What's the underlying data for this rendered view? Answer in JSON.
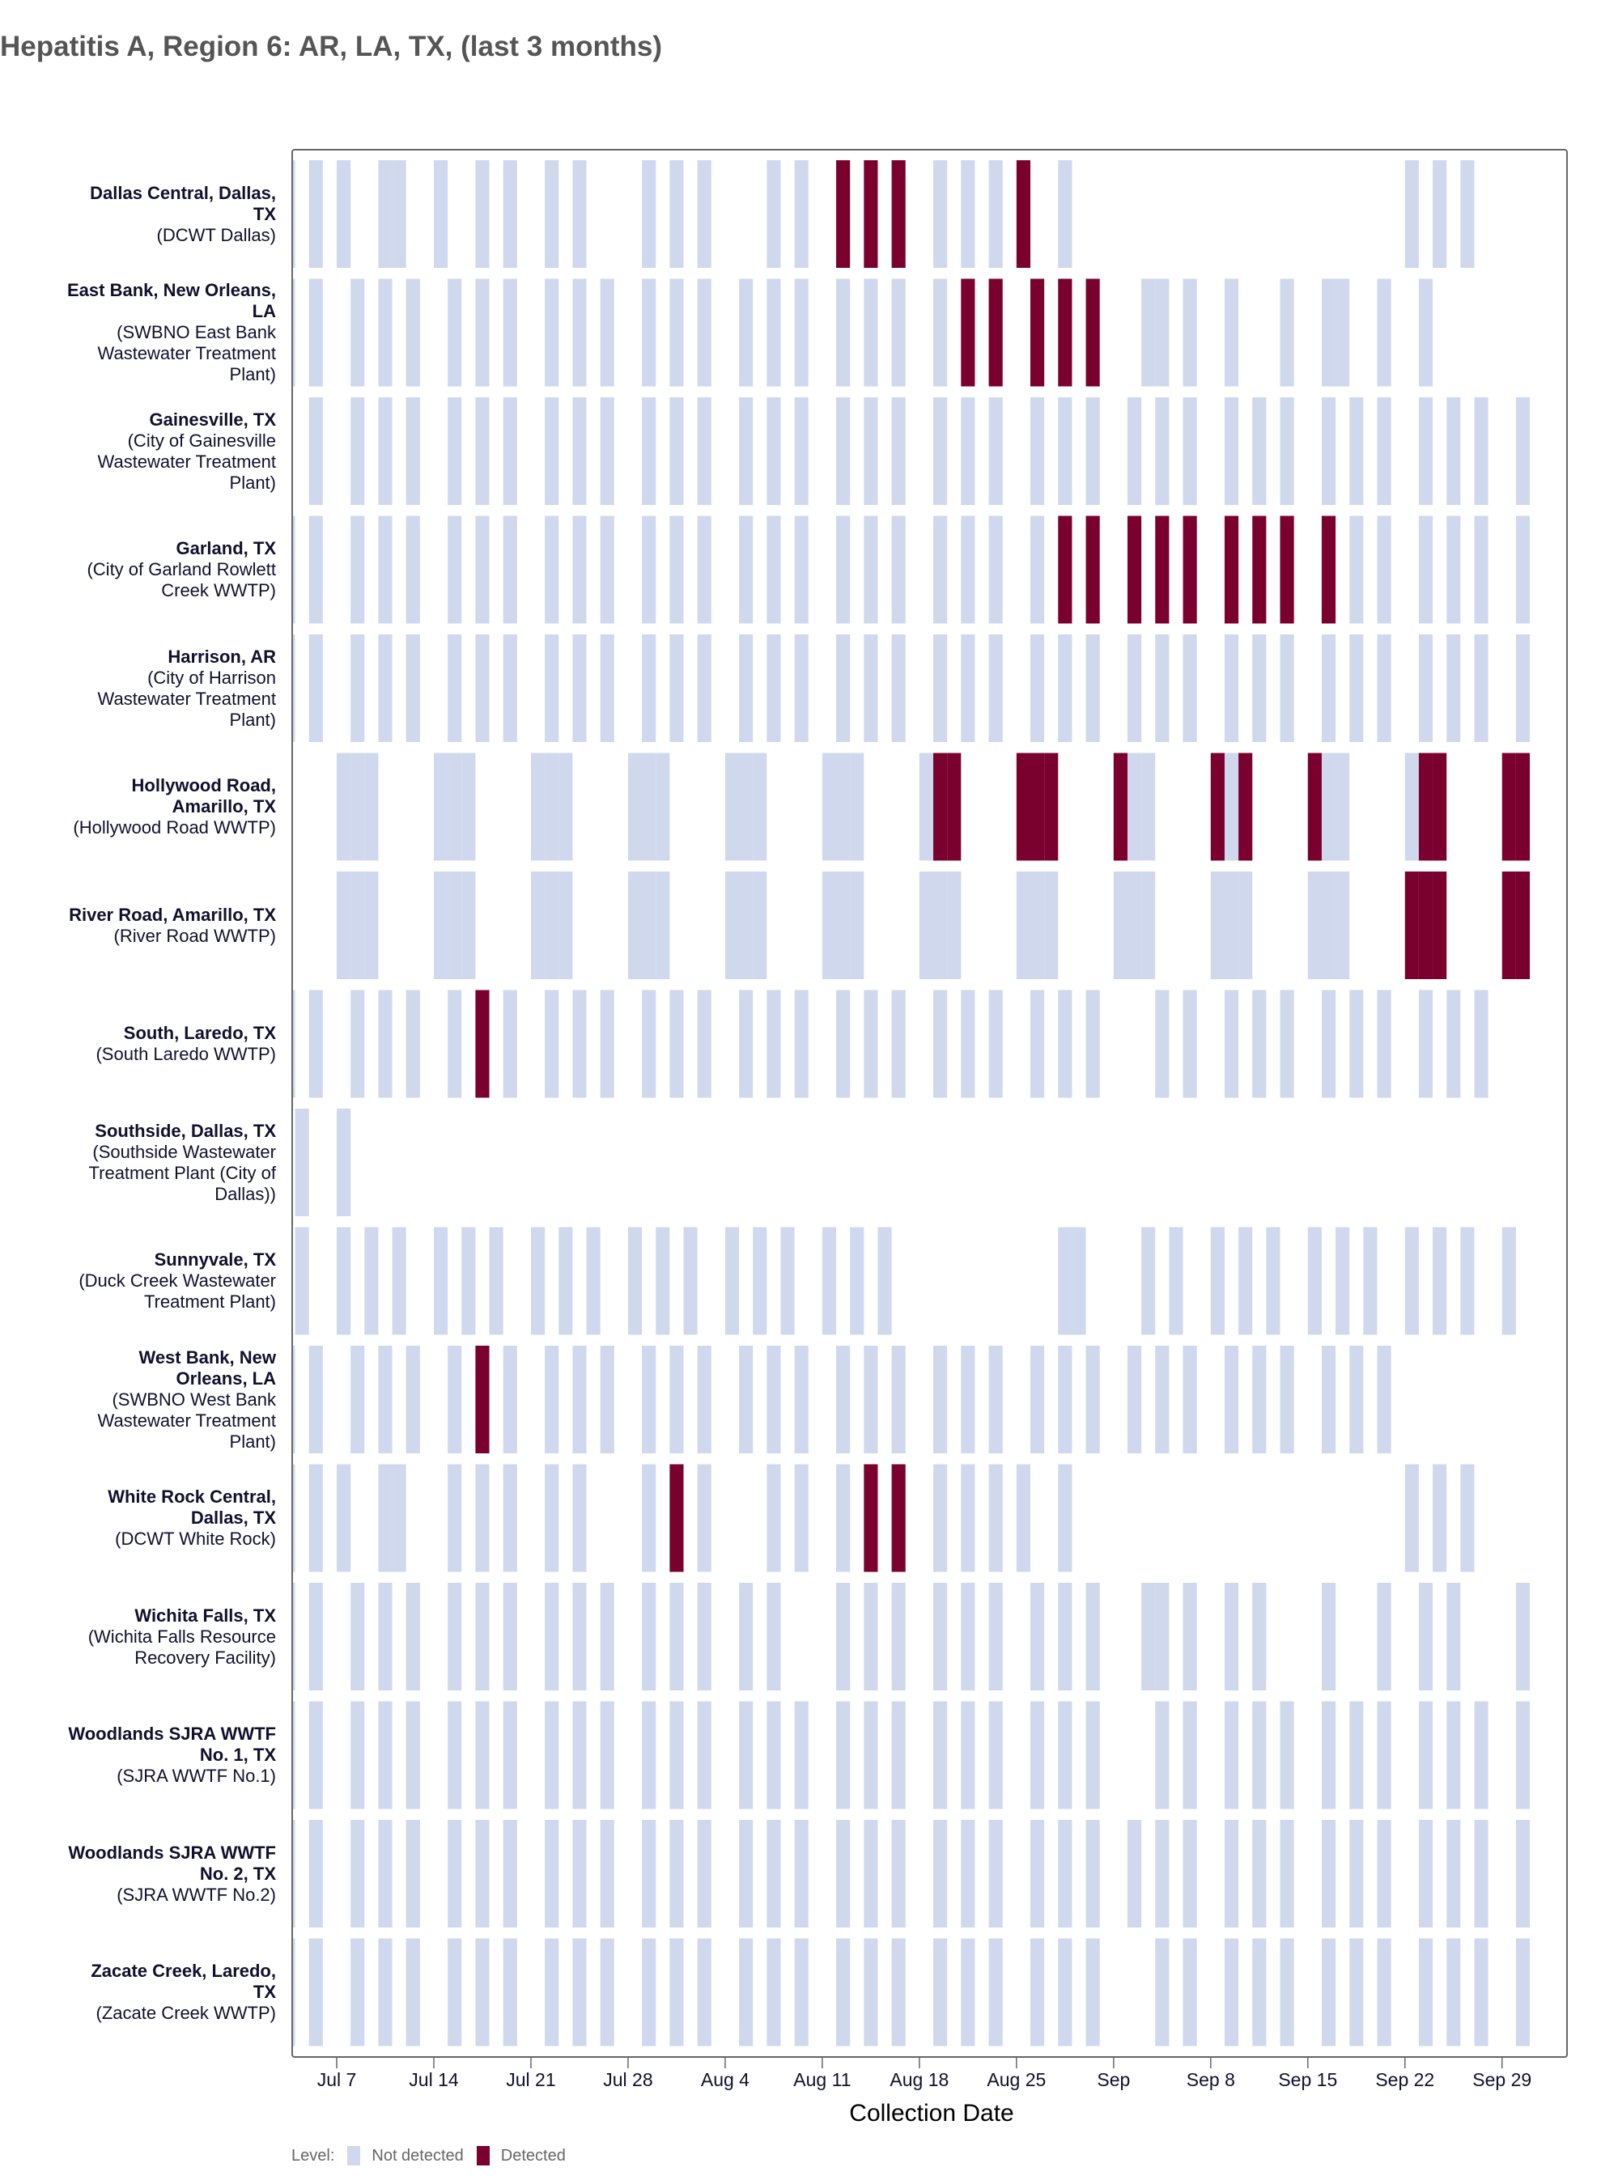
{
  "title": "Hepatitis A, Region 6: AR, LA, TX, (last 3 months)",
  "colors": {
    "not_detected": "#cfd8ed",
    "detected": "#7a002e"
  },
  "chart_data": {
    "type": "heatmap",
    "title": "Hepatitis A, Region 6: AR, LA, TX, (last 3 months)",
    "xlabel": "Collection Date",
    "ylabel": "",
    "x_range": [
      "07-03",
      "10-03"
    ],
    "x_ticks": [
      {
        "date": "07-07",
        "label": "Jul 7"
      },
      {
        "date": "07-14",
        "label": "Jul 14"
      },
      {
        "date": "07-21",
        "label": "Jul 21"
      },
      {
        "date": "07-28",
        "label": "Jul 28"
      },
      {
        "date": "08-04",
        "label": "Aug 4"
      },
      {
        "date": "08-11",
        "label": "Aug 11"
      },
      {
        "date": "08-18",
        "label": "Aug 18"
      },
      {
        "date": "08-25",
        "label": "Aug 25"
      },
      {
        "date": "09-01",
        "label": "Sep"
      },
      {
        "date": "09-08",
        "label": "Sep 8"
      },
      {
        "date": "09-15",
        "label": "Sep 15"
      },
      {
        "date": "09-22",
        "label": "Sep 22"
      },
      {
        "date": "09-29",
        "label": "Sep 29"
      }
    ],
    "legend": {
      "title": "Level:",
      "items": [
        "Not detected",
        "Detected"
      ],
      "placement": "bottom-left"
    },
    "rows": [
      {
        "name_lines": [
          "Dallas Central, Dallas,",
          "TX"
        ],
        "plant_lines": [
          "(DCWT Dallas)"
        ],
        "not_detected": [
          "07-03",
          "07-05",
          "07-07",
          "07-10",
          "07-11",
          "07-14",
          "07-17",
          "07-19",
          "07-22",
          "07-24",
          "07-29",
          "07-31",
          "08-02",
          "08-07",
          "08-09",
          "08-19",
          "08-21",
          "08-23",
          "08-28",
          "09-22",
          "09-24",
          "09-26"
        ],
        "detected": [
          "08-12",
          "08-14",
          "08-16",
          "08-25"
        ]
      },
      {
        "name_lines": [
          "East Bank, New Orleans,",
          "LA"
        ],
        "plant_lines": [
          "(SWBNO East Bank",
          "Wastewater Treatment",
          "Plant)"
        ],
        "not_detected": [
          "07-03",
          "07-05",
          "07-08",
          "07-10",
          "07-12",
          "07-15",
          "07-17",
          "07-19",
          "07-22",
          "07-24",
          "07-26",
          "07-29",
          "07-31",
          "08-02",
          "08-05",
          "08-07",
          "08-09",
          "08-12",
          "08-14",
          "08-16",
          "08-19",
          "09-03",
          "09-04",
          "09-06",
          "09-09",
          "09-13",
          "09-16",
          "09-17",
          "09-20",
          "09-23"
        ],
        "detected": [
          "08-21",
          "08-23",
          "08-26",
          "08-28",
          "08-30"
        ]
      },
      {
        "name_lines": [
          "Gainesville, TX"
        ],
        "plant_lines": [
          "(City of Gainesville",
          "Wastewater Treatment",
          "Plant)"
        ],
        "not_detected": [
          "07-05",
          "07-08",
          "07-10",
          "07-12",
          "07-15",
          "07-17",
          "07-19",
          "07-22",
          "07-24",
          "07-26",
          "07-29",
          "07-31",
          "08-02",
          "08-05",
          "08-07",
          "08-09",
          "08-12",
          "08-14",
          "08-16",
          "08-19",
          "08-21",
          "08-23",
          "08-26",
          "08-28",
          "08-30",
          "09-02",
          "09-04",
          "09-06",
          "09-09",
          "09-11",
          "09-13",
          "09-16",
          "09-18",
          "09-20",
          "09-23",
          "09-25",
          "09-27",
          "09-30"
        ],
        "detected": []
      },
      {
        "name_lines": [
          "Garland, TX"
        ],
        "plant_lines": [
          "(City of Garland Rowlett",
          "Creek WWTP)"
        ],
        "not_detected": [
          "07-03",
          "07-05",
          "07-08",
          "07-10",
          "07-12",
          "07-15",
          "07-17",
          "07-19",
          "07-22",
          "07-24",
          "07-26",
          "07-29",
          "07-31",
          "08-02",
          "08-05",
          "08-07",
          "08-09",
          "08-12",
          "08-14",
          "08-16",
          "08-19",
          "08-21",
          "08-23",
          "08-26",
          "09-18",
          "09-20",
          "09-23",
          "09-25",
          "09-27",
          "09-30"
        ],
        "detected": [
          "08-28",
          "08-30",
          "09-02",
          "09-04",
          "09-06",
          "09-09",
          "09-11",
          "09-13",
          "09-16"
        ]
      },
      {
        "name_lines": [
          "Harrison, AR"
        ],
        "plant_lines": [
          "(City of Harrison",
          "Wastewater Treatment",
          "Plant)"
        ],
        "not_detected": [
          "07-03",
          "07-05",
          "07-08",
          "07-10",
          "07-12",
          "07-15",
          "07-17",
          "07-19",
          "07-22",
          "07-24",
          "07-26",
          "07-29",
          "07-31",
          "08-02",
          "08-05",
          "08-07",
          "08-09",
          "08-12",
          "08-14",
          "08-16",
          "08-19",
          "08-21",
          "08-23",
          "08-26",
          "08-28",
          "08-30",
          "09-02",
          "09-04",
          "09-06",
          "09-09",
          "09-11",
          "09-13",
          "09-16",
          "09-18",
          "09-20",
          "09-23",
          "09-25",
          "09-27",
          "09-30"
        ],
        "detected": []
      },
      {
        "name_lines": [
          "Hollywood Road,",
          "Amarillo, TX"
        ],
        "plant_lines": [
          "(Hollywood Road WWTP)"
        ],
        "not_detected": [
          "07-07",
          "07-08",
          "07-09",
          "07-14",
          "07-15",
          "07-16",
          "07-21",
          "07-22",
          "07-23",
          "07-28",
          "07-29",
          "07-30",
          "08-04",
          "08-05",
          "08-06",
          "08-11",
          "08-12",
          "08-13",
          "08-18",
          "09-02",
          "09-03",
          "09-09",
          "09-16",
          "09-17",
          "09-22"
        ],
        "detected": [
          "08-19",
          "08-20",
          "08-25",
          "08-26",
          "08-27",
          "09-01",
          "09-08",
          "09-10",
          "09-15",
          "09-23",
          "09-24",
          "09-29",
          "09-30"
        ]
      },
      {
        "name_lines": [
          "River Road, Amarillo, TX"
        ],
        "plant_lines": [
          "(River Road WWTP)"
        ],
        "not_detected": [
          "07-07",
          "07-08",
          "07-09",
          "07-14",
          "07-15",
          "07-16",
          "07-21",
          "07-22",
          "07-23",
          "07-28",
          "07-29",
          "07-30",
          "08-04",
          "08-05",
          "08-06",
          "08-11",
          "08-12",
          "08-13",
          "08-18",
          "08-19",
          "08-20",
          "08-25",
          "08-26",
          "08-27",
          "09-01",
          "09-02",
          "09-03",
          "09-08",
          "09-09",
          "09-10",
          "09-15",
          "09-16",
          "09-17"
        ],
        "detected": [
          "09-22",
          "09-23",
          "09-24",
          "09-29",
          "09-30"
        ]
      },
      {
        "name_lines": [
          "South, Laredo, TX"
        ],
        "plant_lines": [
          "(South Laredo WWTP)"
        ],
        "not_detected": [
          "07-03",
          "07-05",
          "07-08",
          "07-10",
          "07-12",
          "07-15",
          "07-19",
          "07-22",
          "07-24",
          "07-26",
          "07-29",
          "07-31",
          "08-02",
          "08-05",
          "08-07",
          "08-09",
          "08-12",
          "08-14",
          "08-16",
          "08-19",
          "08-21",
          "08-23",
          "08-26",
          "08-28",
          "08-30",
          "09-04",
          "09-06",
          "09-09",
          "09-11",
          "09-13",
          "09-16",
          "09-18",
          "09-20",
          "09-23",
          "09-25",
          "09-27"
        ],
        "detected": [
          "07-17"
        ]
      },
      {
        "name_lines": [
          "Southside, Dallas, TX"
        ],
        "plant_lines": [
          "(Southside Wastewater",
          "Treatment Plant (City of",
          "Dallas))"
        ],
        "not_detected": [
          "07-04",
          "07-07"
        ],
        "detected": []
      },
      {
        "name_lines": [
          "Sunnyvale, TX"
        ],
        "plant_lines": [
          "(Duck Creek Wastewater",
          "Treatment Plant)"
        ],
        "not_detected": [
          "07-04",
          "07-07",
          "07-09",
          "07-11",
          "07-14",
          "07-16",
          "07-18",
          "07-21",
          "07-23",
          "07-25",
          "07-28",
          "07-30",
          "08-01",
          "08-04",
          "08-06",
          "08-08",
          "08-11",
          "08-13",
          "08-15",
          "08-28",
          "08-29",
          "09-03",
          "09-05",
          "09-08",
          "09-10",
          "09-12",
          "09-15",
          "09-17",
          "09-19",
          "09-22",
          "09-24",
          "09-26",
          "09-29"
        ],
        "detected": []
      },
      {
        "name_lines": [
          "West Bank, New",
          "Orleans, LA"
        ],
        "plant_lines": [
          "(SWBNO West Bank",
          "Wastewater Treatment",
          "Plant)"
        ],
        "not_detected": [
          "07-03",
          "07-05",
          "07-08",
          "07-10",
          "07-12",
          "07-15",
          "07-19",
          "07-22",
          "07-24",
          "07-26",
          "07-29",
          "07-31",
          "08-02",
          "08-05",
          "08-07",
          "08-09",
          "08-12",
          "08-14",
          "08-16",
          "08-19",
          "08-21",
          "08-23",
          "08-26",
          "08-28",
          "08-30",
          "09-02",
          "09-04",
          "09-06",
          "09-09",
          "09-11",
          "09-13",
          "09-16",
          "09-18",
          "09-20"
        ],
        "detected": [
          "07-17"
        ]
      },
      {
        "name_lines": [
          "White Rock Central,",
          "Dallas, TX"
        ],
        "plant_lines": [
          "(DCWT White Rock)"
        ],
        "not_detected": [
          "07-03",
          "07-05",
          "07-07",
          "07-10",
          "07-11",
          "07-15",
          "07-17",
          "07-19",
          "07-22",
          "07-24",
          "07-29",
          "08-02",
          "08-07",
          "08-09",
          "08-12",
          "08-19",
          "08-21",
          "08-23",
          "08-25",
          "08-28",
          "09-22",
          "09-24",
          "09-26"
        ],
        "detected": [
          "07-31",
          "08-14",
          "08-16"
        ]
      },
      {
        "name_lines": [
          "Wichita Falls, TX"
        ],
        "plant_lines": [
          "(Wichita Falls Resource",
          "Recovery Facility)"
        ],
        "not_detected": [
          "07-03",
          "07-05",
          "07-08",
          "07-10",
          "07-12",
          "07-15",
          "07-17",
          "07-19",
          "07-22",
          "07-24",
          "07-26",
          "07-29",
          "07-31",
          "08-02",
          "08-05",
          "08-07",
          "08-12",
          "08-14",
          "08-16",
          "08-19",
          "08-21",
          "08-23",
          "08-26",
          "08-28",
          "08-30",
          "09-03",
          "09-04",
          "09-06",
          "09-09",
          "09-11",
          "09-16",
          "09-20",
          "09-23",
          "09-25",
          "09-30"
        ],
        "detected": []
      },
      {
        "name_lines": [
          "Woodlands SJRA WWTF",
          "No. 1, TX"
        ],
        "plant_lines": [
          "(SJRA WWTF No.1)"
        ],
        "not_detected": [
          "07-03",
          "07-05",
          "07-08",
          "07-10",
          "07-12",
          "07-15",
          "07-17",
          "07-19",
          "07-22",
          "07-24",
          "07-26",
          "07-29",
          "07-31",
          "08-02",
          "08-05",
          "08-07",
          "08-09",
          "08-12",
          "08-14",
          "08-16",
          "08-19",
          "08-21",
          "08-23",
          "08-26",
          "08-28",
          "08-30",
          "09-04",
          "09-06",
          "09-09",
          "09-11",
          "09-13",
          "09-16",
          "09-18",
          "09-20",
          "09-23",
          "09-25",
          "09-27",
          "09-30"
        ],
        "detected": []
      },
      {
        "name_lines": [
          "Woodlands SJRA WWTF",
          "No. 2, TX"
        ],
        "plant_lines": [
          "(SJRA WWTF No.2)"
        ],
        "not_detected": [
          "07-03",
          "07-05",
          "07-08",
          "07-10",
          "07-12",
          "07-15",
          "07-17",
          "07-19",
          "07-22",
          "07-24",
          "07-26",
          "07-29",
          "07-31",
          "08-02",
          "08-05",
          "08-07",
          "08-09",
          "08-12",
          "08-14",
          "08-16",
          "08-19",
          "08-21",
          "08-23",
          "08-26",
          "08-28",
          "08-30",
          "09-02",
          "09-04",
          "09-06",
          "09-09",
          "09-11",
          "09-13",
          "09-16",
          "09-18",
          "09-20",
          "09-23",
          "09-25",
          "09-27",
          "09-30"
        ],
        "detected": []
      },
      {
        "name_lines": [
          "Zacate Creek, Laredo,",
          "TX"
        ],
        "plant_lines": [
          "(Zacate Creek WWTP)"
        ],
        "not_detected": [
          "07-03",
          "07-05",
          "07-08",
          "07-10",
          "07-12",
          "07-15",
          "07-17",
          "07-19",
          "07-22",
          "07-24",
          "07-26",
          "07-29",
          "07-31",
          "08-02",
          "08-05",
          "08-07",
          "08-09",
          "08-12",
          "08-14",
          "08-16",
          "08-19",
          "08-21",
          "08-23",
          "08-26",
          "08-28",
          "08-30",
          "09-04",
          "09-06",
          "09-09",
          "09-11",
          "09-13",
          "09-16",
          "09-18",
          "09-20",
          "09-23",
          "09-25",
          "09-27",
          "09-30"
        ],
        "detected": []
      }
    ]
  }
}
